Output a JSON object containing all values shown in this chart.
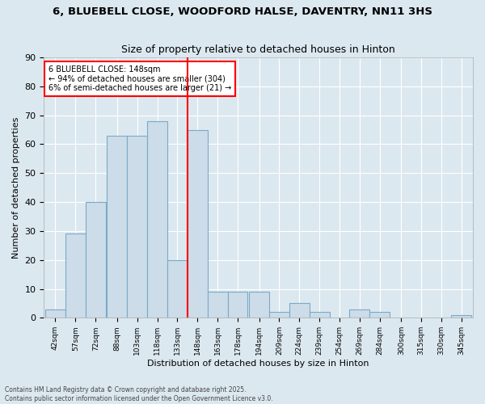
{
  "title": "6, BLUEBELL CLOSE, WOODFORD HALSE, DAVENTRY, NN11 3HS",
  "subtitle": "Size of property relative to detached houses in Hinton",
  "xlabel": "Distribution of detached houses by size in Hinton",
  "ylabel": "Number of detached properties",
  "bins": [
    42,
    57,
    72,
    88,
    103,
    118,
    133,
    148,
    163,
    178,
    194,
    209,
    224,
    239,
    254,
    269,
    284,
    300,
    315,
    330,
    345
  ],
  "counts": [
    3,
    29,
    40,
    63,
    63,
    68,
    20,
    65,
    9,
    9,
    9,
    2,
    5,
    2,
    0,
    3,
    2,
    0,
    0,
    0,
    1
  ],
  "bin_width": 15,
  "marker_value": 148,
  "marker_label": "6 BLUEBELL CLOSE: 148sqm",
  "annotation_line1": "← 94% of detached houses are smaller (304)",
  "annotation_line2": "6% of semi-detached houses are larger (21) →",
  "bar_color": "#ccdce8",
  "bar_edge_color": "#7aaac8",
  "marker_color": "red",
  "background_color": "#dce8f0",
  "ylim": [
    0,
    90
  ],
  "yticks": [
    0,
    10,
    20,
    30,
    40,
    50,
    60,
    70,
    80,
    90
  ],
  "footnote": "Contains HM Land Registry data © Crown copyright and database right 2025.\nContains public sector information licensed under the Open Government Licence v3.0."
}
